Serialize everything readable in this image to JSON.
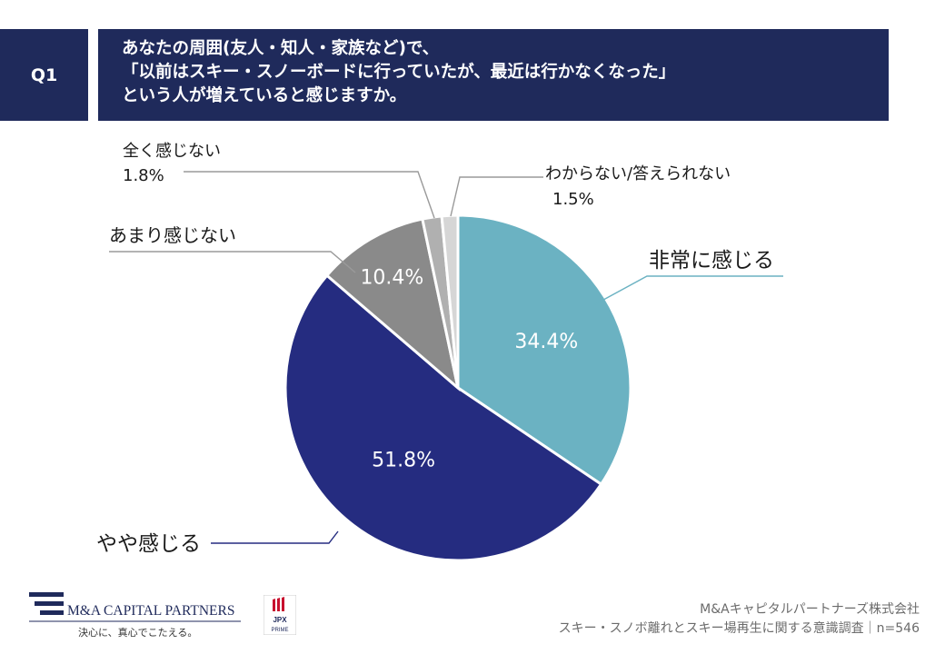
{
  "header": {
    "q_label": "Q1",
    "question_lines": [
      "あなたの周囲(友人・知人・家族など)で、",
      "「以前はスキー・スノーボードに行っていたが、最近は行かなくなった」",
      "という人が増えていると感じますか。"
    ]
  },
  "chart_data": {
    "type": "pie",
    "title": "",
    "slices": [
      {
        "label": "非常に感じる",
        "value": 34.4,
        "display": "34.4%",
        "color": "#6bb2c2"
      },
      {
        "label": "やや感じる",
        "value": 51.8,
        "display": "51.8%",
        "color": "#252c80"
      },
      {
        "label": "あまり感じない",
        "value": 10.4,
        "display": "10.4%",
        "color": "#8a8a8a"
      },
      {
        "label": "全く感じない",
        "value": 1.8,
        "display": "1.8%",
        "color": "#b0b0b0"
      },
      {
        "label": "わからない/答えられない",
        "value": 1.5,
        "display": "1.5%",
        "color": "#d6d6d6"
      }
    ],
    "start": "12 o'clock",
    "direction": "clockwise"
  },
  "branding": {
    "company_logo_text": "M&A CAPITAL PARTNERS",
    "tagline": "決心に、真心でこたえる。",
    "jpx_text": "JPX",
    "jpx_sub": "PRIME"
  },
  "footer": {
    "company": "M&Aキャピタルパートナーズ株式会社",
    "survey": "スキー・スノボ離れとスキー場再生に関する意識調査｜n=546"
  }
}
